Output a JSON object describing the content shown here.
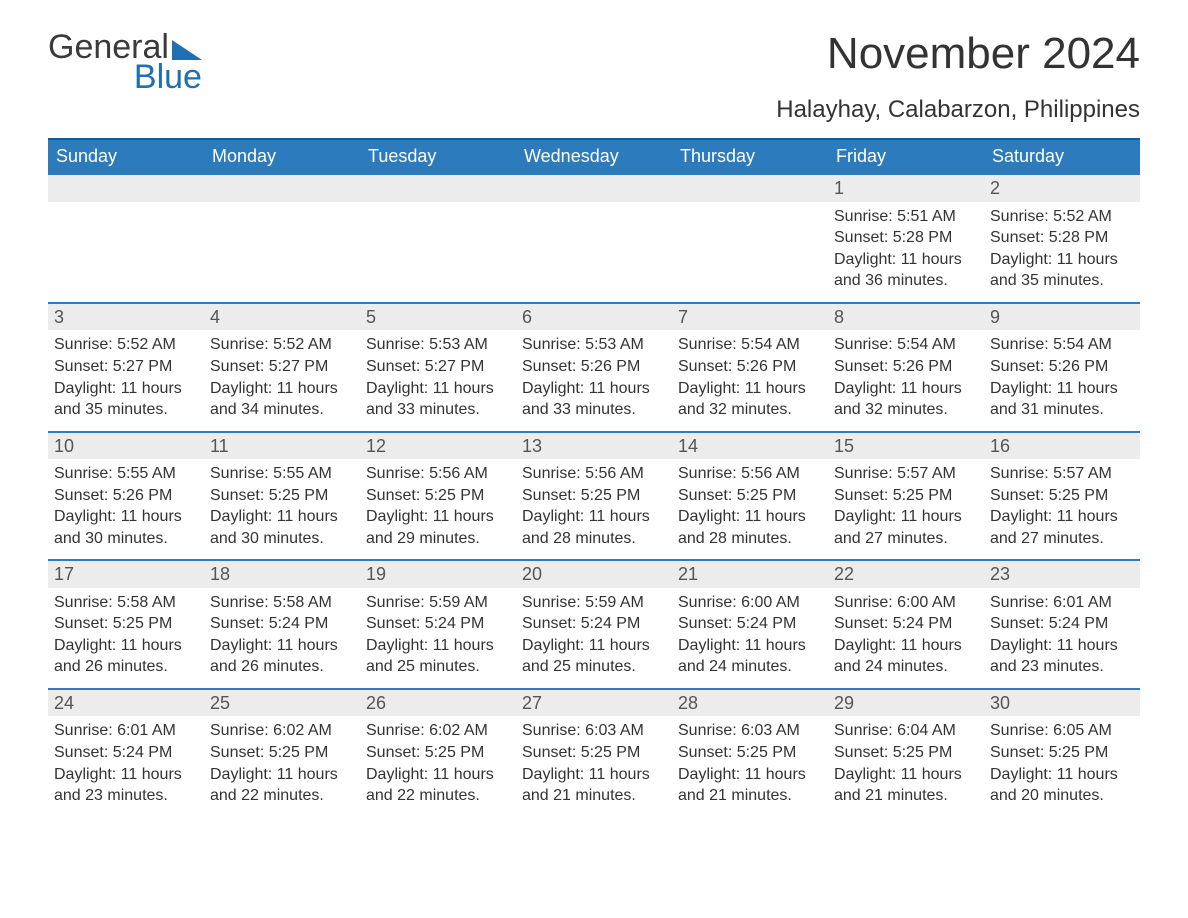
{
  "logo": {
    "text1": "General",
    "text2": "Blue",
    "accent_color": "#1f6fb2"
  },
  "title": "November 2024",
  "location": "Halayhay, Calabarzon, Philippines",
  "colors": {
    "header_bg": "#2b7bbd",
    "header_border_top": "#1a5a8f",
    "week_border": "#2b7bbd",
    "daynum_bg": "#ececec",
    "text": "#333333"
  },
  "day_names": [
    "Sunday",
    "Monday",
    "Tuesday",
    "Wednesday",
    "Thursday",
    "Friday",
    "Saturday"
  ],
  "weeks": [
    [
      null,
      null,
      null,
      null,
      null,
      {
        "n": "1",
        "sunrise": "5:51 AM",
        "sunset": "5:28 PM",
        "daylight": "11 hours and 36 minutes."
      },
      {
        "n": "2",
        "sunrise": "5:52 AM",
        "sunset": "5:28 PM",
        "daylight": "11 hours and 35 minutes."
      }
    ],
    [
      {
        "n": "3",
        "sunrise": "5:52 AM",
        "sunset": "5:27 PM",
        "daylight": "11 hours and 35 minutes."
      },
      {
        "n": "4",
        "sunrise": "5:52 AM",
        "sunset": "5:27 PM",
        "daylight": "11 hours and 34 minutes."
      },
      {
        "n": "5",
        "sunrise": "5:53 AM",
        "sunset": "5:27 PM",
        "daylight": "11 hours and 33 minutes."
      },
      {
        "n": "6",
        "sunrise": "5:53 AM",
        "sunset": "5:26 PM",
        "daylight": "11 hours and 33 minutes."
      },
      {
        "n": "7",
        "sunrise": "5:54 AM",
        "sunset": "5:26 PM",
        "daylight": "11 hours and 32 minutes."
      },
      {
        "n": "8",
        "sunrise": "5:54 AM",
        "sunset": "5:26 PM",
        "daylight": "11 hours and 32 minutes."
      },
      {
        "n": "9",
        "sunrise": "5:54 AM",
        "sunset": "5:26 PM",
        "daylight": "11 hours and 31 minutes."
      }
    ],
    [
      {
        "n": "10",
        "sunrise": "5:55 AM",
        "sunset": "5:26 PM",
        "daylight": "11 hours and 30 minutes."
      },
      {
        "n": "11",
        "sunrise": "5:55 AM",
        "sunset": "5:25 PM",
        "daylight": "11 hours and 30 minutes."
      },
      {
        "n": "12",
        "sunrise": "5:56 AM",
        "sunset": "5:25 PM",
        "daylight": "11 hours and 29 minutes."
      },
      {
        "n": "13",
        "sunrise": "5:56 AM",
        "sunset": "5:25 PM",
        "daylight": "11 hours and 28 minutes."
      },
      {
        "n": "14",
        "sunrise": "5:56 AM",
        "sunset": "5:25 PM",
        "daylight": "11 hours and 28 minutes."
      },
      {
        "n": "15",
        "sunrise": "5:57 AM",
        "sunset": "5:25 PM",
        "daylight": "11 hours and 27 minutes."
      },
      {
        "n": "16",
        "sunrise": "5:57 AM",
        "sunset": "5:25 PM",
        "daylight": "11 hours and 27 minutes."
      }
    ],
    [
      {
        "n": "17",
        "sunrise": "5:58 AM",
        "sunset": "5:25 PM",
        "daylight": "11 hours and 26 minutes."
      },
      {
        "n": "18",
        "sunrise": "5:58 AM",
        "sunset": "5:24 PM",
        "daylight": "11 hours and 26 minutes."
      },
      {
        "n": "19",
        "sunrise": "5:59 AM",
        "sunset": "5:24 PM",
        "daylight": "11 hours and 25 minutes."
      },
      {
        "n": "20",
        "sunrise": "5:59 AM",
        "sunset": "5:24 PM",
        "daylight": "11 hours and 25 minutes."
      },
      {
        "n": "21",
        "sunrise": "6:00 AM",
        "sunset": "5:24 PM",
        "daylight": "11 hours and 24 minutes."
      },
      {
        "n": "22",
        "sunrise": "6:00 AM",
        "sunset": "5:24 PM",
        "daylight": "11 hours and 24 minutes."
      },
      {
        "n": "23",
        "sunrise": "6:01 AM",
        "sunset": "5:24 PM",
        "daylight": "11 hours and 23 minutes."
      }
    ],
    [
      {
        "n": "24",
        "sunrise": "6:01 AM",
        "sunset": "5:24 PM",
        "daylight": "11 hours and 23 minutes."
      },
      {
        "n": "25",
        "sunrise": "6:02 AM",
        "sunset": "5:25 PM",
        "daylight": "11 hours and 22 minutes."
      },
      {
        "n": "26",
        "sunrise": "6:02 AM",
        "sunset": "5:25 PM",
        "daylight": "11 hours and 22 minutes."
      },
      {
        "n": "27",
        "sunrise": "6:03 AM",
        "sunset": "5:25 PM",
        "daylight": "11 hours and 21 minutes."
      },
      {
        "n": "28",
        "sunrise": "6:03 AM",
        "sunset": "5:25 PM",
        "daylight": "11 hours and 21 minutes."
      },
      {
        "n": "29",
        "sunrise": "6:04 AM",
        "sunset": "5:25 PM",
        "daylight": "11 hours and 21 minutes."
      },
      {
        "n": "30",
        "sunrise": "6:05 AM",
        "sunset": "5:25 PM",
        "daylight": "11 hours and 20 minutes."
      }
    ]
  ],
  "labels": {
    "sunrise": "Sunrise:",
    "sunset": "Sunset:",
    "daylight": "Daylight:"
  }
}
